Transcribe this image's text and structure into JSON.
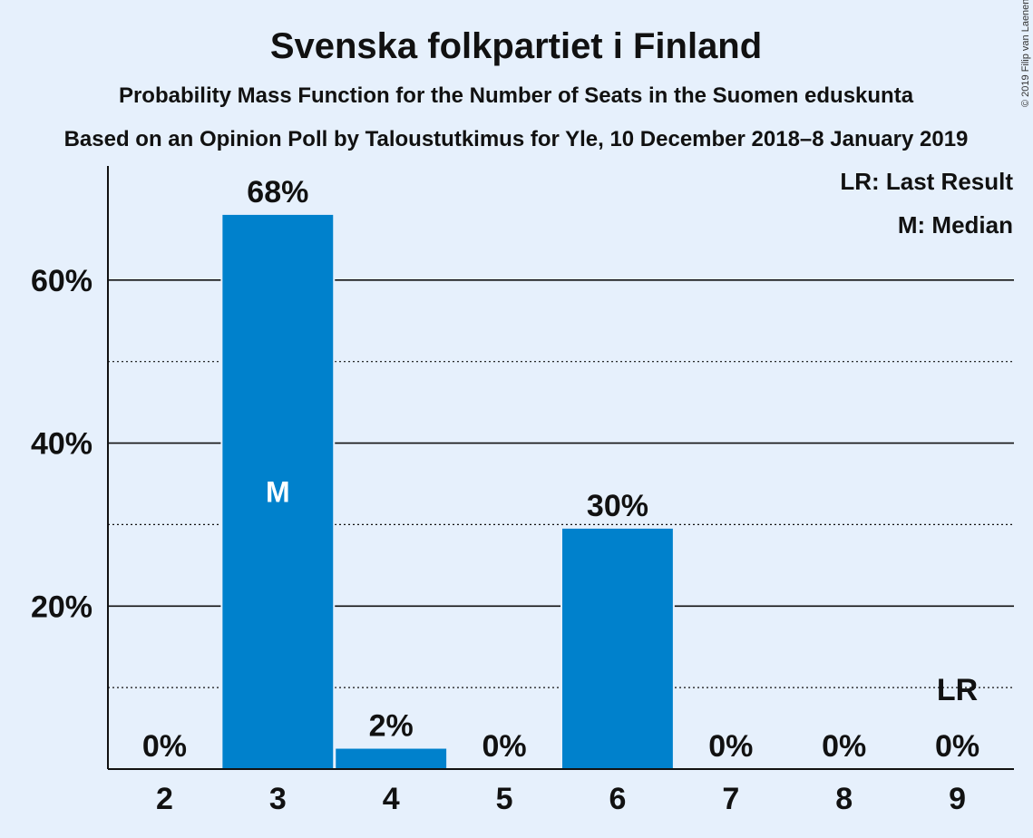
{
  "chart_data": {
    "type": "bar",
    "title": "Svenska folkpartiet i Finland",
    "subtitle": "Probability Mass Function for the Number of Seats in the Suomen eduskunta",
    "subtitle2": "Based on an Opinion Poll by Taloustutkimus for Yle, 10 December 2018–8 January 2019",
    "copyright": "© 2019 Filip van Laenen",
    "legend": [
      "LR: Last Result",
      "M: Median"
    ],
    "legend_position": "top-right",
    "categories": [
      "2",
      "3",
      "4",
      "5",
      "6",
      "7",
      "8",
      "9"
    ],
    "values": [
      0,
      68,
      2.5,
      0,
      29.5,
      0,
      0,
      0
    ],
    "value_labels": [
      "0%",
      "68%",
      "2%",
      "0%",
      "30%",
      "0%",
      "0%",
      "0%"
    ],
    "ylim": [
      0,
      74
    ],
    "yticks": [
      20,
      40,
      60
    ],
    "ytick_labels": [
      "20%",
      "40%",
      "60%"
    ],
    "minor_gridlines": [
      10,
      30,
      50
    ],
    "median_category": "3",
    "median_label": "M",
    "last_result_category": "9",
    "last_result_label": "LR",
    "bar_color": "#0081cc",
    "background_color": "#e6f0fc"
  }
}
